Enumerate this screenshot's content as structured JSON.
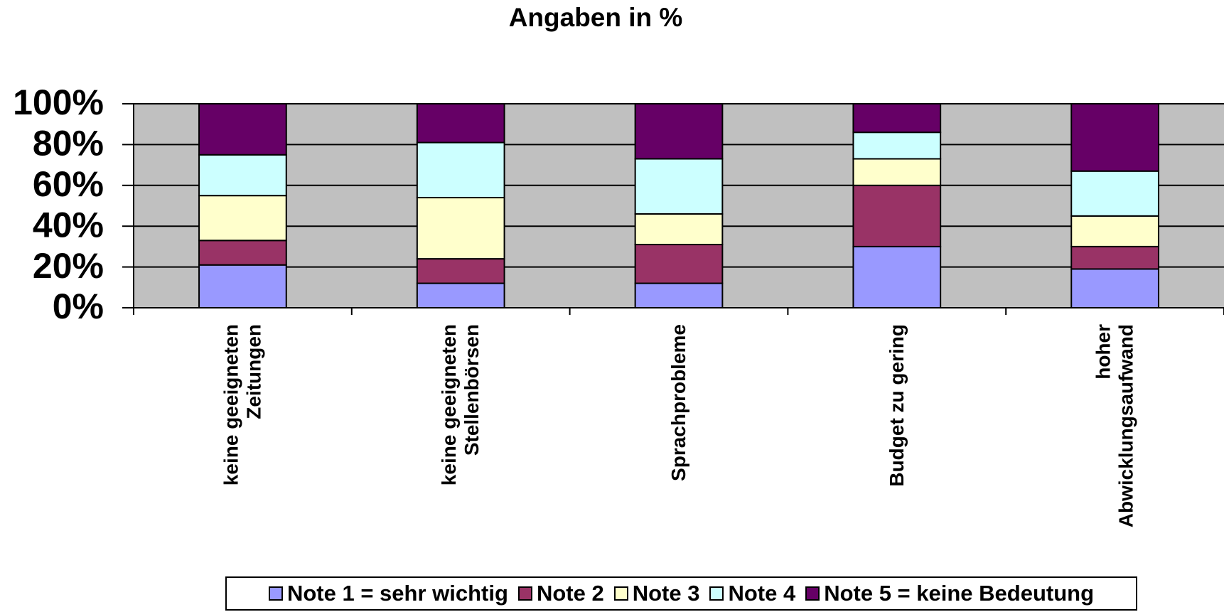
{
  "chart_data": {
    "type": "stacked_bar",
    "title": "Angaben in %",
    "categories": [
      "keine geeigneten\nZeitungen",
      "keine geeigneten\nStellenbörsen",
      "Sprachprobleme",
      "Budget zu gering",
      "hoher\nAbwicklungsaufwand"
    ],
    "series": [
      {
        "name": "Note 1 = sehr wichtig",
        "color": "#9999ff",
        "values": [
          21,
          12,
          12,
          30,
          19
        ]
      },
      {
        "name": "Note 2",
        "color": "#993366",
        "values": [
          12,
          12,
          19,
          30,
          11
        ]
      },
      {
        "name": "Note 3",
        "color": "#ffffcc",
        "values": [
          22,
          30,
          15,
          13,
          15
        ]
      },
      {
        "name": "Note 4",
        "color": "#ccffff",
        "values": [
          20,
          27,
          27,
          13,
          22
        ]
      },
      {
        "name": "Note 5 = keine Bedeutung",
        "color": "#660066",
        "values": [
          25,
          19,
          27,
          14,
          33
        ]
      }
    ],
    "ylim": [
      0,
      100
    ],
    "yticks": [
      {
        "value": 0,
        "label": "0%"
      },
      {
        "value": 20,
        "label": "20%"
      },
      {
        "value": 40,
        "label": "40%"
      },
      {
        "value": 60,
        "label": "60%"
      },
      {
        "value": 80,
        "label": "80%"
      },
      {
        "value": 100,
        "label": "100%"
      }
    ],
    "grid": true,
    "plot_background": "#c0c0c0",
    "legend": "bottom"
  }
}
